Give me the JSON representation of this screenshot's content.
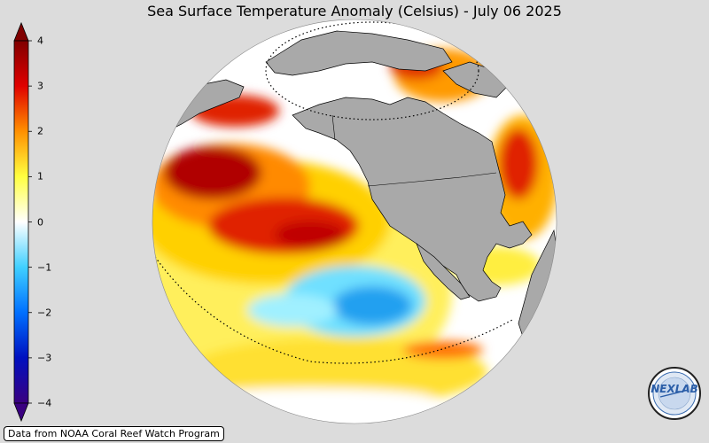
{
  "title": "Sea Surface Temperature Anomaly (Celsius) - July 06 2025",
  "credit": "Data from NOAA Coral Reef Watch Program",
  "logo": {
    "text": "NEXLAB"
  },
  "colorbar": {
    "min": -4,
    "max": 4,
    "ticks": [
      {
        "value": 4,
        "label": "4"
      },
      {
        "value": 3,
        "label": "3"
      },
      {
        "value": 2,
        "label": "2"
      },
      {
        "value": 1,
        "label": "1"
      },
      {
        "value": 0,
        "label": "0"
      },
      {
        "value": -1,
        "label": "−1"
      },
      {
        "value": -2,
        "label": "−2"
      },
      {
        "value": -3,
        "label": "−3"
      },
      {
        "value": -4,
        "label": "−4"
      }
    ],
    "colors": [
      "#3a0080",
      "#0010c0",
      "#0070ff",
      "#40d0ff",
      "#ffffff",
      "#ffff40",
      "#ff9000",
      "#e00000",
      "#800000"
    ]
  },
  "colors": {
    "land": "#a9a9a9",
    "warm_strong": "#a00000",
    "warm": "#e02000",
    "warm_mid": "#ff8000",
    "warm_light": "#ffe000",
    "cool": "#60e0ff",
    "cool_strong": "#1090f0"
  }
}
